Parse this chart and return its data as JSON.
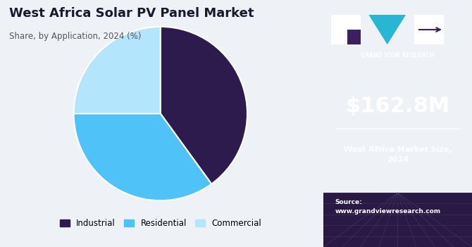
{
  "title_line1": "West Africa Solar PV Panel Market",
  "title_line2": "Share, by Application, 2024 (%)",
  "slices": [
    40.0,
    35.0,
    25.0
  ],
  "labels": [
    "Industrial",
    "Residential",
    "Commercial"
  ],
  "colors": [
    "#2d1b4e",
    "#4fc3f7",
    "#b3e5fc"
  ],
  "start_angle": 90,
  "bg_color_left": "#eef2f7",
  "bg_color_right": "#3b1f5e",
  "sidebar_value": "$162.8M",
  "sidebar_label": "West Africa Market Size,\n2024",
  "source_text": "Source:\nwww.grandviewresearch.com",
  "title_color": "#1a1a2e",
  "subtitle_color": "#555555",
  "legend_colors": [
    "#2d1b4e",
    "#4fc3f7",
    "#b3e5fc"
  ],
  "grid_color": "#5a4a7a",
  "grid_bottom_color": "#2a1845",
  "logo_text": "GRAND VIEW RESEARCH"
}
